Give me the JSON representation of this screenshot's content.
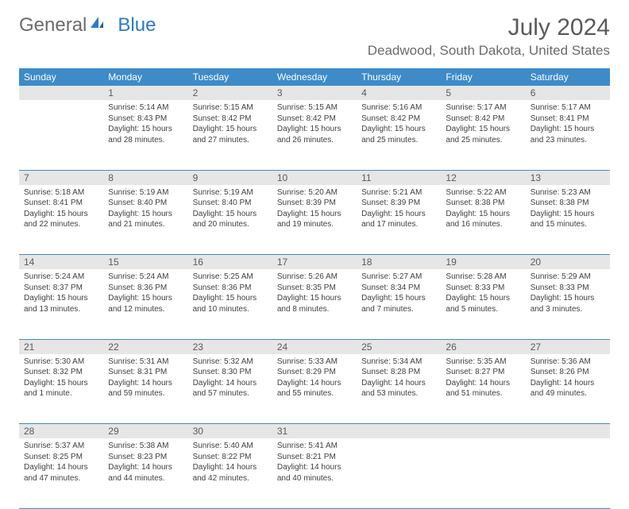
{
  "logo": {
    "text1": "General",
    "text2": "Blue"
  },
  "title": "July 2024",
  "location": "Deadwood, South Dakota, United States",
  "colors": {
    "header_bg": "#3d8bc9",
    "header_text": "#ffffff",
    "daynum_bg": "#e6e6e6",
    "border": "#3d8bc9",
    "text": "#404040",
    "muted": "#6b6b6b",
    "logo_blue": "#2a7bc4"
  },
  "day_headers": [
    "Sunday",
    "Monday",
    "Tuesday",
    "Wednesday",
    "Thursday",
    "Friday",
    "Saturday"
  ],
  "weeks": [
    [
      {
        "num": "",
        "lines": []
      },
      {
        "num": "1",
        "lines": [
          "Sunrise: 5:14 AM",
          "Sunset: 8:43 PM",
          "Daylight: 15 hours and 28 minutes."
        ]
      },
      {
        "num": "2",
        "lines": [
          "Sunrise: 5:15 AM",
          "Sunset: 8:42 PM",
          "Daylight: 15 hours and 27 minutes."
        ]
      },
      {
        "num": "3",
        "lines": [
          "Sunrise: 5:15 AM",
          "Sunset: 8:42 PM",
          "Daylight: 15 hours and 26 minutes."
        ]
      },
      {
        "num": "4",
        "lines": [
          "Sunrise: 5:16 AM",
          "Sunset: 8:42 PM",
          "Daylight: 15 hours and 25 minutes."
        ]
      },
      {
        "num": "5",
        "lines": [
          "Sunrise: 5:17 AM",
          "Sunset: 8:42 PM",
          "Daylight: 15 hours and 25 minutes."
        ]
      },
      {
        "num": "6",
        "lines": [
          "Sunrise: 5:17 AM",
          "Sunset: 8:41 PM",
          "Daylight: 15 hours and 23 minutes."
        ]
      }
    ],
    [
      {
        "num": "7",
        "lines": [
          "Sunrise: 5:18 AM",
          "Sunset: 8:41 PM",
          "Daylight: 15 hours and 22 minutes."
        ]
      },
      {
        "num": "8",
        "lines": [
          "Sunrise: 5:19 AM",
          "Sunset: 8:40 PM",
          "Daylight: 15 hours and 21 minutes."
        ]
      },
      {
        "num": "9",
        "lines": [
          "Sunrise: 5:19 AM",
          "Sunset: 8:40 PM",
          "Daylight: 15 hours and 20 minutes."
        ]
      },
      {
        "num": "10",
        "lines": [
          "Sunrise: 5:20 AM",
          "Sunset: 8:39 PM",
          "Daylight: 15 hours and 19 minutes."
        ]
      },
      {
        "num": "11",
        "lines": [
          "Sunrise: 5:21 AM",
          "Sunset: 8:39 PM",
          "Daylight: 15 hours and 17 minutes."
        ]
      },
      {
        "num": "12",
        "lines": [
          "Sunrise: 5:22 AM",
          "Sunset: 8:38 PM",
          "Daylight: 15 hours and 16 minutes."
        ]
      },
      {
        "num": "13",
        "lines": [
          "Sunrise: 5:23 AM",
          "Sunset: 8:38 PM",
          "Daylight: 15 hours and 15 minutes."
        ]
      }
    ],
    [
      {
        "num": "14",
        "lines": [
          "Sunrise: 5:24 AM",
          "Sunset: 8:37 PM",
          "Daylight: 15 hours and 13 minutes."
        ]
      },
      {
        "num": "15",
        "lines": [
          "Sunrise: 5:24 AM",
          "Sunset: 8:36 PM",
          "Daylight: 15 hours and 12 minutes."
        ]
      },
      {
        "num": "16",
        "lines": [
          "Sunrise: 5:25 AM",
          "Sunset: 8:36 PM",
          "Daylight: 15 hours and 10 minutes."
        ]
      },
      {
        "num": "17",
        "lines": [
          "Sunrise: 5:26 AM",
          "Sunset: 8:35 PM",
          "Daylight: 15 hours and 8 minutes."
        ]
      },
      {
        "num": "18",
        "lines": [
          "Sunrise: 5:27 AM",
          "Sunset: 8:34 PM",
          "Daylight: 15 hours and 7 minutes."
        ]
      },
      {
        "num": "19",
        "lines": [
          "Sunrise: 5:28 AM",
          "Sunset: 8:33 PM",
          "Daylight: 15 hours and 5 minutes."
        ]
      },
      {
        "num": "20",
        "lines": [
          "Sunrise: 5:29 AM",
          "Sunset: 8:33 PM",
          "Daylight: 15 hours and 3 minutes."
        ]
      }
    ],
    [
      {
        "num": "21",
        "lines": [
          "Sunrise: 5:30 AM",
          "Sunset: 8:32 PM",
          "Daylight: 15 hours and 1 minute."
        ]
      },
      {
        "num": "22",
        "lines": [
          "Sunrise: 5:31 AM",
          "Sunset: 8:31 PM",
          "Daylight: 14 hours and 59 minutes."
        ]
      },
      {
        "num": "23",
        "lines": [
          "Sunrise: 5:32 AM",
          "Sunset: 8:30 PM",
          "Daylight: 14 hours and 57 minutes."
        ]
      },
      {
        "num": "24",
        "lines": [
          "Sunrise: 5:33 AM",
          "Sunset: 8:29 PM",
          "Daylight: 14 hours and 55 minutes."
        ]
      },
      {
        "num": "25",
        "lines": [
          "Sunrise: 5:34 AM",
          "Sunset: 8:28 PM",
          "Daylight: 14 hours and 53 minutes."
        ]
      },
      {
        "num": "26",
        "lines": [
          "Sunrise: 5:35 AM",
          "Sunset: 8:27 PM",
          "Daylight: 14 hours and 51 minutes."
        ]
      },
      {
        "num": "27",
        "lines": [
          "Sunrise: 5:36 AM",
          "Sunset: 8:26 PM",
          "Daylight: 14 hours and 49 minutes."
        ]
      }
    ],
    [
      {
        "num": "28",
        "lines": [
          "Sunrise: 5:37 AM",
          "Sunset: 8:25 PM",
          "Daylight: 14 hours and 47 minutes."
        ]
      },
      {
        "num": "29",
        "lines": [
          "Sunrise: 5:38 AM",
          "Sunset: 8:23 PM",
          "Daylight: 14 hours and 44 minutes."
        ]
      },
      {
        "num": "30",
        "lines": [
          "Sunrise: 5:40 AM",
          "Sunset: 8:22 PM",
          "Daylight: 14 hours and 42 minutes."
        ]
      },
      {
        "num": "31",
        "lines": [
          "Sunrise: 5:41 AM",
          "Sunset: 8:21 PM",
          "Daylight: 14 hours and 40 minutes."
        ]
      },
      {
        "num": "",
        "lines": []
      },
      {
        "num": "",
        "lines": []
      },
      {
        "num": "",
        "lines": []
      }
    ]
  ]
}
